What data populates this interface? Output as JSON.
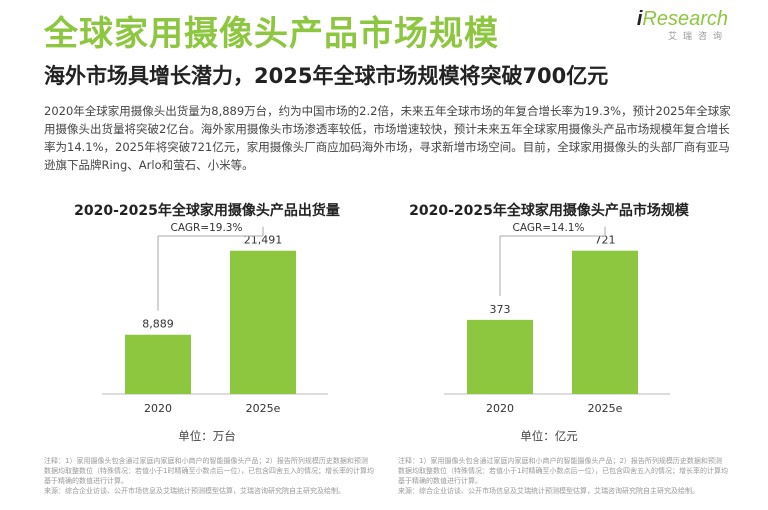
{
  "header": {
    "title": "全球家用摄像头产品市场规模",
    "subtitle": "海外市场具增长潜力，2025年全球市场规模将突破700亿元"
  },
  "logo": {
    "prefix": "i",
    "brand": "Research",
    "chinese": "艾瑞咨询"
  },
  "body_text": "2020年全球家用摄像头出货量为8,889万台，约为中国市场的2.2倍，未来五年全球市场的年复合增长率为19.3%，预计2025年全球家用摄像头出货量将突破2亿台。海外家用摄像头市场渗透率较低，市场增速较快，预计未来五年全球家用摄像头产品市场规模年复合增长率为14.1%，2025年将突破721亿元，家用摄像头厂商应加码海外市场，寻求新增市场空间。目前，全球家用摄像头的头部厂商有亚马逊旗下品牌Ring、Arlo和萤石、小米等。",
  "colors": {
    "accent": "#8dc63f",
    "bar": "#8dc63f",
    "text": "#333333"
  },
  "chart_data": [
    {
      "type": "bar",
      "title": "2020-2025年全球家用摄像头产品出货量",
      "categories": [
        "2020",
        "2025e"
      ],
      "values": [
        8889,
        21491
      ],
      "value_labels": [
        "8,889",
        "21,491"
      ],
      "cagr_label": "CAGR=19.3%",
      "unit": "单位：万台",
      "ylim": [
        0,
        24000
      ],
      "grid": false
    },
    {
      "type": "bar",
      "title": "2020-2025年全球家用摄像头产品市场规模",
      "categories": [
        "2020",
        "2025e"
      ],
      "values": [
        373,
        721
      ],
      "value_labels": [
        "373",
        "721"
      ],
      "cagr_label": "CAGR=14.1%",
      "unit": "单位：亿元",
      "ylim": [
        0,
        805
      ],
      "grid": false
    }
  ],
  "notes": {
    "left": [
      "注释：1）家用摄像头包含通过家庭内家庭和小商户的智能摄像头产品；2）报告所列规模历史数据和预测数据均取整数位（特殊情况：若值小于1时精确至小数点后一位），已包含四舍五入的情况；增长率的计算均基于精确的数值进行计算。",
      "来源：综合企业访谈、公开市场信息及艾瑞统计预测模型估算，艾瑞咨询研究院自主研究及绘制。"
    ],
    "right": [
      "注释：1）家用摄像头包含通过家庭内家庭和小商户的智能摄像头产品；2）报告所列规模历史数据和预测数据均取整数位（特殊情况：若值小于1时精确至小数点后一位），已包含四舍五入的情况；增长率的计算均基于精确的数值进行计算。",
      "来源：综合企业访谈、公开市场信息及艾瑞统计预测模型估算，艾瑞咨询研究院自主研究及绘制。"
    ]
  }
}
